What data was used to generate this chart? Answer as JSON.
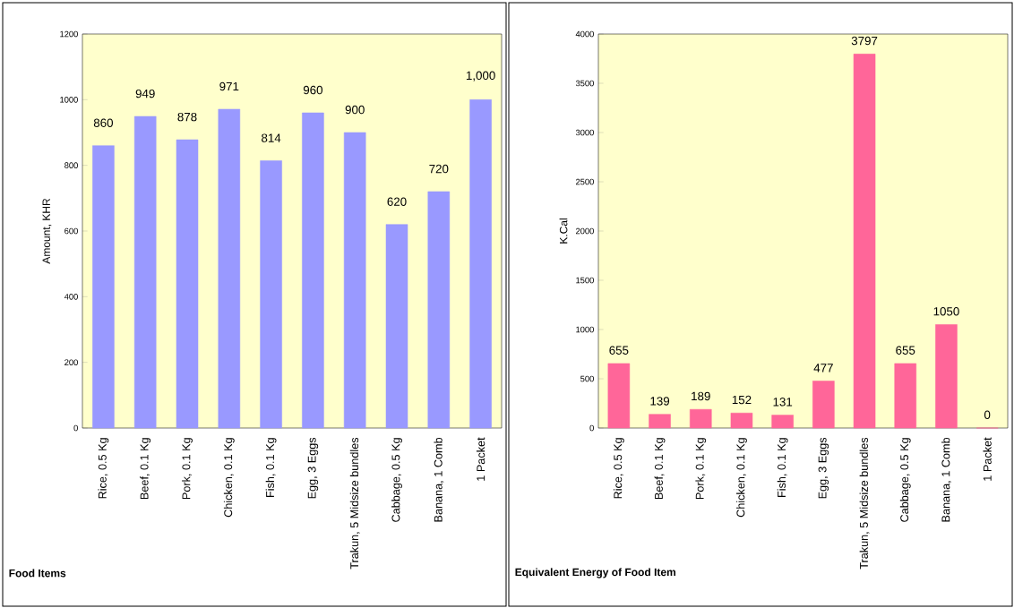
{
  "chart_data": [
    {
      "type": "bar",
      "xlabel": "Food Items",
      "ylabel": "Amount, KHR",
      "categories": [
        "Rice, 0.5 Kg",
        "Beef, 0.1 Kg",
        "Pork, 0.1 Kg",
        "Chicken, 0.1 Kg",
        "Fish, 0.1 Kg",
        "Egg, 3 Eggs",
        "Trakun, 5 Midsize bundles",
        "Cabbage, 0.5 Kg",
        "Banana, 1 Comb",
        "1 Packet"
      ],
      "values": [
        860,
        949,
        878,
        971,
        814,
        960,
        900,
        620,
        720,
        1000
      ],
      "value_labels": [
        "860",
        "949",
        "878",
        "971",
        "814",
        "960",
        "900",
        "620",
        "720",
        "1,000"
      ],
      "color": "#9999ff",
      "ylim": [
        0,
        1200
      ],
      "yticks": [
        0,
        200,
        400,
        600,
        800,
        1000,
        1200
      ]
    },
    {
      "type": "bar",
      "xlabel": "Equivalent Energy of Food Item",
      "ylabel": "K.Cal",
      "categories": [
        "Rice, 0.5 Kg",
        "Beef, 0.1 Kg",
        "Pork, 0.1 Kg",
        "Chicken, 0.1 Kg",
        "Fish, 0.1 Kg",
        "Egg, 3 Eggs",
        "Trakun, 5 Midsize bundles",
        "Cabbage, 0.5 Kg",
        "Banana, 1 Comb",
        "1 Packet"
      ],
      "values": [
        655,
        139,
        189,
        152,
        131,
        477,
        3797,
        655,
        1050,
        0
      ],
      "data_labels": true,
      "color": "#ff6699",
      "ylim": [
        0,
        4000
      ],
      "yticks": [
        0,
        500,
        1000,
        1500,
        2000,
        2500,
        3000,
        3500,
        4000
      ]
    }
  ]
}
